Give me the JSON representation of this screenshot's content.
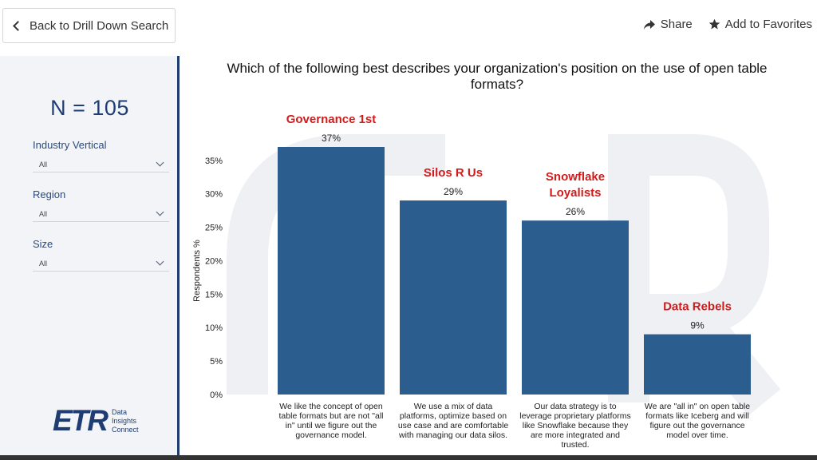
{
  "topbar": {
    "back_label": "Back to Drill Down Search",
    "share_label": "Share",
    "favorites_label": "Add to Favorites"
  },
  "sidebar": {
    "n_count": "N = 105",
    "filters": [
      {
        "label": "Industry Vertical",
        "value": "All"
      },
      {
        "label": "Region",
        "value": "All"
      },
      {
        "label": "Size",
        "value": "All"
      }
    ],
    "logo": {
      "mark": "ETR",
      "line1": "Data",
      "line2": "Insights",
      "line3": "Connect"
    }
  },
  "colors": {
    "bar": "#2b5d8f",
    "annotation": "#d21b1b",
    "accent": "#1f3d73"
  },
  "chart_data": {
    "type": "bar",
    "title": "Which of the following best describes your organization's position on the use of open table formats?",
    "ylabel": "Respondents %",
    "ylim": [
      0,
      37
    ],
    "yticks": [
      "0%",
      "5%",
      "10%",
      "15%",
      "20%",
      "25%",
      "30%",
      "35%"
    ],
    "values": [
      37,
      29,
      26,
      9
    ],
    "value_labels": [
      "37%",
      "29%",
      "26%",
      "9%"
    ],
    "categories": [
      [
        "We like the concept of open",
        "table formats but are not \"all",
        "in\" until we figure out the",
        "governance model."
      ],
      [
        "We use a mix of data",
        "platforms, optimize based on",
        "use case and are comfortable",
        "with managing our data silos."
      ],
      [
        "Our data strategy is to",
        "leverage proprietary platforms",
        "like Snowflake because they",
        "are more integrated and",
        "trusted."
      ],
      [
        "We are \"all in\" on open table",
        "formats like Iceberg and will",
        "figure out the governance",
        "model over time."
      ]
    ],
    "annotations": [
      [
        "Governance 1st"
      ],
      [
        "Silos R Us"
      ],
      [
        "Snowflake",
        "Loyalists"
      ],
      [
        "Data Rebels"
      ]
    ]
  }
}
